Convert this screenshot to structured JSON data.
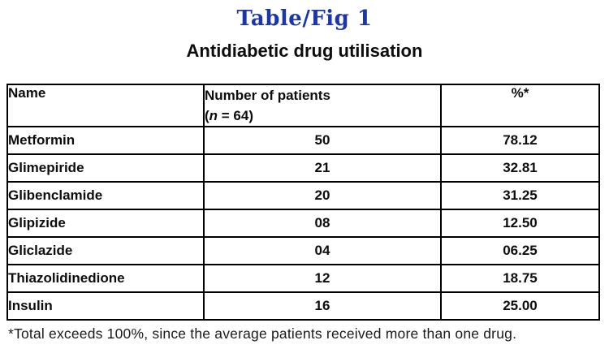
{
  "page": {
    "title": "Table/Fig 1",
    "subtitle": "Antidiabetic drug utilisation",
    "title_color": "#1b36a9",
    "border_color": "#000000",
    "text_color": "#0d0d0d"
  },
  "table": {
    "columns": {
      "name": "Name",
      "patients_line1": "Number of patients",
      "patients_line2_prefix": "(",
      "patients_line2_italic": "n",
      "patients_line2_suffix": " = 64)",
      "percent": "%*"
    },
    "rows": [
      {
        "name": "Metformin",
        "patients": "50",
        "percent": "78.12"
      },
      {
        "name": "Glimepiride",
        "patients": "21",
        "percent": "32.81"
      },
      {
        "name": "Glibenclamide",
        "patients": "20",
        "percent": "31.25"
      },
      {
        "name": "Glipizide",
        "patients": "08",
        "percent": "12.50"
      },
      {
        "name": "Gliclazide",
        "patients": "04",
        "percent": "06.25"
      },
      {
        "name": "Thiazolidinedione",
        "patients": "12",
        "percent": "18.75"
      },
      {
        "name": "Insulin",
        "patients": "16",
        "percent": "25.00"
      }
    ],
    "footnote": "*Total exceeds 100%, since the average patients received more than one drug."
  }
}
